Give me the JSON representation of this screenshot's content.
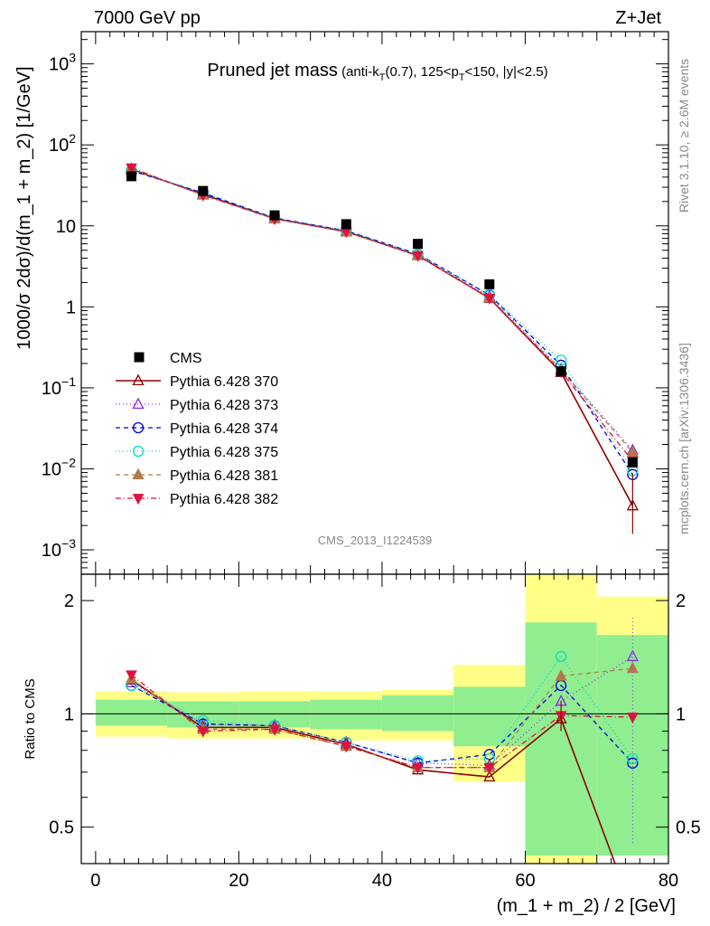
{
  "header": {
    "energy_label": "7000 GeV pp",
    "process_label": "Z+Jet"
  },
  "side_labels": {
    "rivet": "Rivet 3.1.10, ≥ 2.6M events",
    "mcplots": "mcplots.cern.ch [arXiv:1306.3436]"
  },
  "chart_data": {
    "type": "line",
    "title_main": "Pruned jet mass",
    "title_sub": "(anti-k_T(0.7), 125<p_T<150, |y|<2.5)",
    "analysis_id": "CMS_2013_I1224539",
    "xlabel": "(m_1 + m_2) / 2 [GeV]",
    "ylabel_main": "1000/σ 2dσ)/d(m_1 + m_2) [1/GeV]",
    "ylabel_ratio": "Ratio to CMS",
    "xlim": [
      -2,
      80
    ],
    "xticks": [
      0,
      20,
      40,
      60,
      80
    ],
    "main_ylim": [
      0.0005,
      2500
    ],
    "main_yscale": "log",
    "main_yticks": [
      {
        "v": 0.001,
        "b": "10",
        "e": "−3"
      },
      {
        "v": 0.01,
        "b": "10",
        "e": "−2"
      },
      {
        "v": 0.1,
        "b": "10",
        "e": "−1"
      },
      {
        "v": 1,
        "b": "1",
        "e": ""
      },
      {
        "v": 10,
        "b": "10",
        "e": ""
      },
      {
        "v": 100,
        "b": "10",
        "e": "2"
      },
      {
        "v": 1000,
        "b": "10",
        "e": "3"
      }
    ],
    "ratio_ylim": [
      0.4,
      2.35
    ],
    "ratio_yscale": "log",
    "ratio_yticks": [
      0.5,
      1,
      2
    ],
    "x": [
      5,
      15,
      25,
      35,
      45,
      55,
      65,
      75
    ],
    "bins": [
      [
        0,
        10
      ],
      [
        10,
        20
      ],
      [
        20,
        30
      ],
      [
        30,
        40
      ],
      [
        40,
        50
      ],
      [
        50,
        60
      ],
      [
        60,
        70
      ],
      [
        70,
        80
      ]
    ],
    "data": {
      "name": "CMS",
      "values": [
        41,
        27,
        13.5,
        10.5,
        6.0,
        1.9,
        0.16,
        0.012
      ],
      "band_inner": [
        [
          0.93,
          1.09
        ],
        [
          0.92,
          1.08
        ],
        [
          0.92,
          1.08
        ],
        [
          0.91,
          1.09
        ],
        [
          0.9,
          1.12
        ],
        [
          0.82,
          1.18
        ],
        [
          0.42,
          1.75
        ],
        [
          0.42,
          1.62
        ]
      ],
      "band_outer": [
        [
          0.87,
          1.15
        ],
        [
          0.86,
          1.14
        ],
        [
          0.86,
          1.15
        ],
        [
          0.85,
          1.15
        ],
        [
          0.85,
          1.16
        ],
        [
          0.66,
          1.35
        ],
        [
          0.35,
          2.4
        ],
        [
          0.43,
          2.05
        ]
      ],
      "color_inner": "#90ee90",
      "color_outer": "#ffff88"
    },
    "series": [
      {
        "name": "Pythia 6.428 370",
        "color": "#8b0000",
        "marker": "triangle-up-open",
        "dash": "",
        "values": [
          50,
          24.5,
          12.3,
          8.5,
          4.3,
          1.28,
          0.155,
          0.0035
        ],
        "ratio": [
          1.23,
          0.92,
          0.92,
          0.83,
          0.71,
          0.68,
          0.97,
          0.3
        ]
      },
      {
        "name": "Pythia 6.428 373",
        "color": "#8b2be2",
        "marker": "triangle-up-open",
        "dash": "1,3",
        "values": [
          49,
          25,
          12.4,
          8.6,
          4.4,
          1.35,
          0.17,
          0.017
        ],
        "ratio": [
          1.21,
          0.94,
          0.93,
          0.84,
          0.74,
          0.73,
          1.08,
          1.42
        ]
      },
      {
        "name": "Pythia 6.428 374",
        "color": "#0000dd",
        "marker": "circle-open",
        "dash": "5,4",
        "values": [
          48,
          25.5,
          12.5,
          8.7,
          4.5,
          1.4,
          0.19,
          0.0085
        ],
        "ratio": [
          1.19,
          0.94,
          0.93,
          0.84,
          0.74,
          0.78,
          1.19,
          0.74
        ]
      },
      {
        "name": "Pythia 6.428 375",
        "color": "#00ddbb",
        "marker": "circle-open",
        "dash": "1,3",
        "values": [
          48.5,
          26,
          12.6,
          8.8,
          4.5,
          1.42,
          0.22,
          0.0095
        ],
        "ratio": [
          1.19,
          0.96,
          0.93,
          0.84,
          0.75,
          0.76,
          1.42,
          0.76
        ]
      },
      {
        "name": "Pythia 6.428 381",
        "color": "#b07a4a",
        "marker": "triangle-up-filled",
        "dash": "5,4",
        "values": [
          51,
          24,
          12.2,
          8.4,
          4.3,
          1.3,
          0.165,
          0.016
        ],
        "ratio": [
          1.24,
          0.91,
          0.91,
          0.82,
          0.72,
          0.72,
          1.26,
          1.32
        ]
      },
      {
        "name": "Pythia 6.428 382",
        "color": "#dc143c",
        "marker": "triangle-down-filled",
        "dash": "6,3,1,3",
        "values": [
          52,
          24,
          12.2,
          8.5,
          4.3,
          1.28,
          0.158,
          0.0125
        ],
        "ratio": [
          1.27,
          0.9,
          0.91,
          0.82,
          0.72,
          0.72,
          0.99,
          0.98
        ]
      }
    ]
  }
}
